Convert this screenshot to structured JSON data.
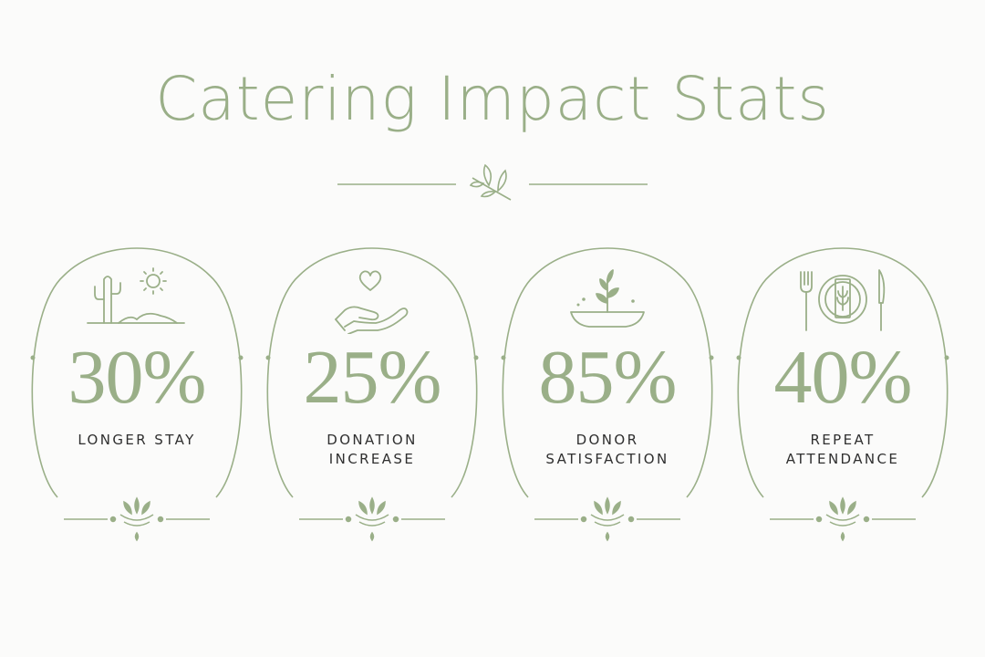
{
  "title": "Catering Impact Stats",
  "colors": {
    "accent": "#9aaf88",
    "text": "#2f2f2f",
    "background": "#fbfbfa"
  },
  "stats": [
    {
      "value": "30%",
      "label_lines": [
        "LONGER STAY"
      ],
      "icon": "cactus-sun-icon"
    },
    {
      "value": "25%",
      "label_lines": [
        "DONATION",
        "INCREASE"
      ],
      "icon": "hand-heart-icon"
    },
    {
      "value": "85%",
      "label_lines": [
        "DONOR",
        "SATISFACTION"
      ],
      "icon": "plant-bowl-icon"
    },
    {
      "value": "40%",
      "label_lines": [
        "REPEAT",
        "ATTENDANCE"
      ],
      "icon": "place-setting-icon"
    }
  ]
}
